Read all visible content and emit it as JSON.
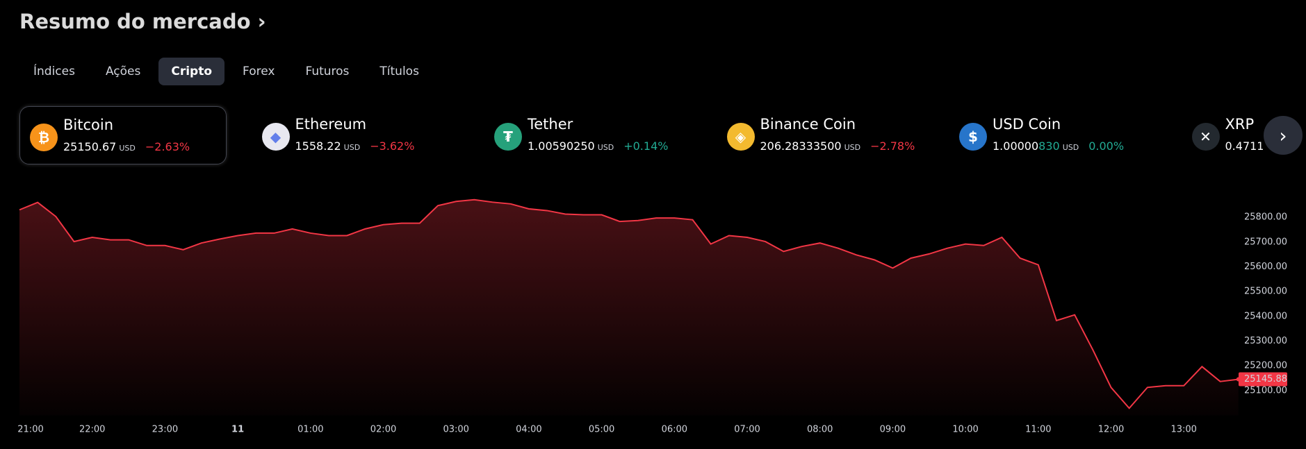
{
  "header": {
    "title": "Resumo do mercado",
    "arrow": "›"
  },
  "tabs": [
    "Índices",
    "Ações",
    "Cripto",
    "Forex",
    "Futuros",
    "Títulos"
  ],
  "active_tab": 2,
  "tickers": [
    {
      "name": "Bitcoin",
      "price": "25150.67",
      "unit": "USD",
      "change": "−2.63%",
      "direction": "down",
      "icon_color": "#f7931a",
      "icon": "₿"
    },
    {
      "name": "Ethereum",
      "price": "1558.22",
      "unit": "USD",
      "change": "−3.62%",
      "direction": "down",
      "icon_color": "#e8e8f0",
      "icon": "◆"
    },
    {
      "name": "Tether",
      "price": "1.00590250",
      "unit": "USD",
      "change": "+0.14%",
      "direction": "up",
      "icon_color": "#26a17b",
      "icon": "₮"
    },
    {
      "name": "Binance Coin",
      "price": "206.28333500",
      "unit": "USD",
      "change": "−2.78%",
      "direction": "down",
      "icon_color": "#f3ba2f",
      "icon": "◈"
    },
    {
      "name": "USD Coin",
      "price": "1.00000",
      "price_highlight": "830",
      "unit": "USD",
      "change": "0.00%",
      "direction": "up",
      "icon_color": "#2775ca",
      "icon": "$"
    },
    {
      "name": "XRP",
      "price": "0.4711",
      "unit": "",
      "change": "",
      "direction": "down",
      "icon_color": "#23292f",
      "icon": "✕"
    }
  ],
  "chart_data": {
    "type": "line",
    "color": "#f23645",
    "categories": [
      "21:00",
      null,
      null,
      null,
      "22:00",
      null,
      null,
      null,
      "23:00",
      null,
      null,
      null,
      "11",
      null,
      null,
      null,
      "01:00",
      null,
      null,
      null,
      "02:00",
      null,
      null,
      null,
      "03:00",
      null,
      null,
      null,
      "04:00",
      null,
      null,
      null,
      "05:00",
      null,
      null,
      null,
      "06:00",
      null,
      null,
      null,
      "07:00",
      null,
      null,
      null,
      "08:00",
      null,
      null,
      null,
      "09:00",
      null,
      null,
      null,
      "10:00",
      null,
      null,
      null,
      "11:00",
      null,
      null,
      null,
      "12:00",
      null,
      null,
      null,
      "13:00",
      null,
      null,
      null
    ],
    "values": [
      25830,
      25860,
      25803,
      25702,
      25719,
      25709,
      25709,
      25686,
      25686,
      25669,
      25696,
      25712,
      25726,
      25736,
      25736,
      25753,
      25736,
      25726,
      25726,
      25753,
      25770,
      25776,
      25776,
      25847,
      25864,
      25871,
      25861,
      25854,
      25834,
      25827,
      25813,
      25810,
      25810,
      25783,
      25787,
      25797,
      25797,
      25790,
      25692,
      25726,
      25719,
      25702,
      25662,
      25682,
      25696,
      25675,
      25648,
      25628,
      25595,
      25635,
      25652,
      25675,
      25692,
      25686,
      25719,
      25635,
      25608,
      25383,
      25406,
      25265,
      25113,
      25029,
      25113,
      25120,
      25120,
      25197,
      25137,
      25146
    ],
    "last_label": "25145.88",
    "ylim": [
      25000,
      25900
    ],
    "yticks": [
      {
        "value": 25100,
        "label": "25100.00"
      },
      {
        "value": 25200,
        "label": "25200.00"
      },
      {
        "value": 25300,
        "label": "25300.00"
      },
      {
        "value": 25400,
        "label": "25400.00"
      },
      {
        "value": 25500,
        "label": "25500.00"
      },
      {
        "value": 25600,
        "label": "25600.00"
      },
      {
        "value": 25700,
        "label": "25700.00"
      },
      {
        "value": 25800,
        "label": "25800.00"
      }
    ]
  }
}
